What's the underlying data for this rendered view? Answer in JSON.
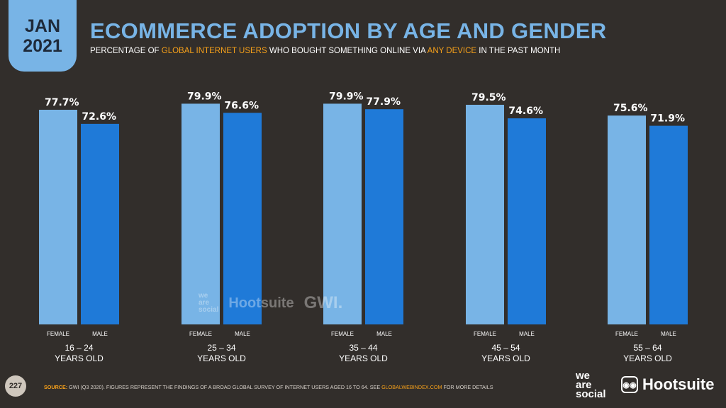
{
  "header": {
    "date_month": "JAN",
    "date_year": "2021",
    "title": "ECOMMERCE ADOPTION BY AGE AND GENDER",
    "subtitle_parts": [
      "PERCENTAGE OF ",
      "GLOBAL INTERNET USERS",
      " WHO BOUGHT SOMETHING ONLINE VIA ",
      "ANY DEVICE",
      " IN THE PAST MONTH"
    ]
  },
  "chart_data": {
    "type": "bar",
    "categories": [
      "16 – 24|YEARS OLD",
      "25 – 34|YEARS OLD",
      "35 – 44|YEARS OLD",
      "45 – 54|YEARS OLD",
      "55 – 64|YEARS OLD"
    ],
    "series": [
      {
        "name": "FEMALE",
        "values": [
          77.7,
          79.9,
          79.9,
          79.5,
          75.6
        ],
        "labels": [
          "77.7%",
          "79.9%",
          "79.9%",
          "79.5%",
          "75.6%"
        ],
        "color": "#78b4e6"
      },
      {
        "name": "MALE",
        "values": [
          72.6,
          76.6,
          77.9,
          74.6,
          71.9
        ],
        "labels": [
          "72.6%",
          "76.6%",
          "77.9%",
          "74.6%",
          "71.9%"
        ],
        "color": "#1f7ad8"
      }
    ],
    "ylim": [
      0,
      100
    ],
    "unit": "%"
  },
  "watermark": {
    "was": "we|are|social",
    "hootsuite": "Hootsuite",
    "gwi": "GWI."
  },
  "footer": {
    "page_number": "227",
    "source_label": "SOURCE:",
    "source_text": " GWI (Q3 2020). FIGURES REPRESENT THE FINDINGS OF A BROAD GLOBAL SURVEY OF INTERNET USERS AGED 16 TO 64. SEE ",
    "source_link": "GLOBALWEBINDEX.COM",
    "source_end": " FOR MORE DETAILS",
    "logo_was": [
      "we",
      "are",
      "social"
    ],
    "logo_hootsuite": "Hootsuite"
  },
  "colors": {
    "background": "#322e2b",
    "accent": "#78b4e6",
    "highlight": "#f6a01a"
  }
}
